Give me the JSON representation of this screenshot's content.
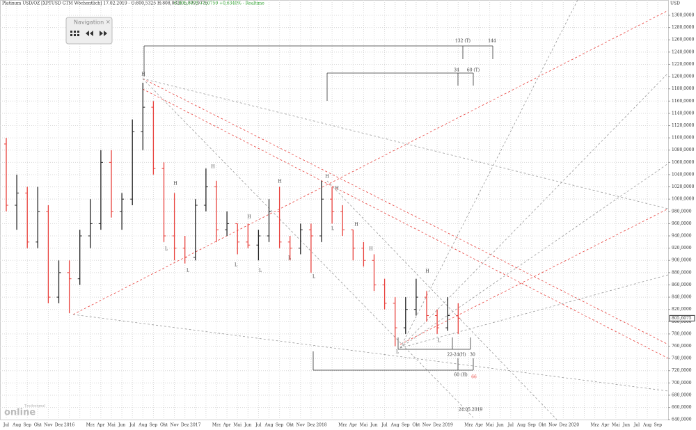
{
  "chart_data": {
    "type": "ohlc",
    "title": "Platinum USD/OZ [XPTUSD GTM Wöchentlich] 17.02.2019 - O:800,5325 H:808,0825 L:779,9775",
    "title_change": "C:805,6075 +5,0750 +0,6340% - Realtime",
    "y_unit": "USD",
    "categories": [
      "Jul",
      "Aug",
      "Sep",
      "Okt",
      "Nov",
      "Dez",
      "2016",
      null,
      "Mrz",
      "Apr",
      "Mai",
      "Jun",
      "Jul",
      "Aug",
      "Sep",
      "Okt",
      "Nov",
      "Dez",
      "2017",
      null,
      "Mrz",
      "Apr",
      "Mai",
      "Jun",
      "Jul",
      "Aug",
      "Sep",
      "Okt",
      "Nov",
      "Dez",
      "2018",
      null,
      "Mrz",
      "Apr",
      "Mai",
      "Jun",
      "Jul",
      "Aug",
      "Sep",
      "Okt",
      "Nov",
      "Dez",
      "2019",
      null,
      "Mrz",
      "Apr",
      "Mai",
      "Jun",
      "Jul",
      "Aug",
      "Sep",
      "Okt",
      "Nov",
      "Dez",
      "2020",
      null,
      "Mrz",
      "Apr",
      "Mai",
      "Jun",
      "Jul",
      "Aug",
      "Sep"
    ],
    "open": [
      1090,
      990,
      1010,
      930,
      980,
      840,
      880,
      870,
      940,
      960,
      1060,
      980,
      1000,
      1110,
      1150,
      1050,
      940,
      920,
      905,
      990,
      1020,
      950,
      960,
      930,
      925,
      940,
      980,
      930,
      920,
      950,
      940,
      1000,
      980,
      950,
      920,
      900,
      860,
      830,
      790,
      820,
      840,
      810,
      790,
      810,
      null,
      null,
      null,
      null,
      null,
      null,
      null,
      null,
      null,
      null,
      null,
      null,
      null,
      null,
      null,
      null,
      null,
      null,
      null
    ],
    "high": [
      1100,
      1040,
      1020,
      1020,
      990,
      900,
      900,
      950,
      1000,
      1080,
      1080,
      1010,
      1130,
      1190,
      1160,
      1060,
      1010,
      940,
      1000,
      1050,
      1030,
      980,
      960,
      960,
      950,
      1000,
      1020,
      940,
      960,
      960,
      1030,
      1020,
      990,
      950,
      930,
      910,
      870,
      840,
      840,
      870,
      850,
      820,
      840,
      830,
      null,
      null,
      null,
      null,
      null,
      null,
      null,
      null,
      null,
      null,
      null,
      null,
      null,
      null,
      null,
      null,
      null,
      null,
      null
    ],
    "low": [
      980,
      950,
      920,
      920,
      830,
      830,
      814,
      860,
      920,
      950,
      970,
      950,
      990,
      1080,
      1040,
      930,
      900,
      895,
      900,
      980,
      930,
      940,
      910,
      920,
      900,
      930,
      920,
      900,
      910,
      880,
      930,
      960,
      940,
      900,
      890,
      850,
      820,
      760,
      780,
      810,
      800,
      780,
      785,
      780,
      null,
      null,
      null,
      null,
      null,
      null,
      null,
      null,
      null,
      null,
      null,
      null,
      null,
      null,
      null,
      null,
      null,
      null,
      null
    ],
    "close": [
      990,
      1010,
      930,
      980,
      840,
      880,
      870,
      940,
      960,
      1060,
      980,
      1000,
      1110,
      1150,
      1050,
      940,
      920,
      905,
      990,
      1020,
      950,
      960,
      930,
      925,
      940,
      980,
      930,
      920,
      950,
      940,
      1000,
      980,
      950,
      920,
      900,
      860,
      830,
      790,
      820,
      840,
      810,
      790,
      810,
      805.6,
      null,
      null,
      null,
      null,
      null,
      null,
      null,
      null,
      null,
      null,
      null,
      null,
      null,
      null,
      null,
      null,
      null,
      null,
      null
    ],
    "up_color": "#222222",
    "down_color": "#e8413c",
    "ylim": [
      630,
      1325
    ],
    "yticks": [
      {
        "value": 640,
        "label": "640,0000"
      },
      {
        "value": 660,
        "label": "660,0000"
      },
      {
        "value": 680,
        "label": "680,0000"
      },
      {
        "value": 700,
        "label": "700,0000"
      },
      {
        "value": 720,
        "label": "720,0000"
      },
      {
        "value": 740,
        "label": "740,0000"
      },
      {
        "value": 760,
        "label": "760,0000"
      },
      {
        "value": 780,
        "label": "780,0000"
      },
      {
        "value": 800,
        "label": "800,0000"
      },
      {
        "value": 820,
        "label": "820,0000"
      },
      {
        "value": 840,
        "label": "840,0000"
      },
      {
        "value": 860,
        "label": "860,0000"
      },
      {
        "value": 880,
        "label": "880,0000"
      },
      {
        "value": 900,
        "label": "900,0000"
      },
      {
        "value": 920,
        "label": "920,0000"
      },
      {
        "value": 940,
        "label": "940,0000"
      },
      {
        "value": 960,
        "label": "960,0000"
      },
      {
        "value": 980,
        "label": "980,0000"
      },
      {
        "value": 1000,
        "label": "1000,0000"
      },
      {
        "value": 1020,
        "label": "1020,0000"
      },
      {
        "value": 1040,
        "label": "1040,0000"
      },
      {
        "value": 1060,
        "label": "1060,0000"
      },
      {
        "value": 1080,
        "label": "1080,0000"
      },
      {
        "value": 1100,
        "label": "1100,0000"
      },
      {
        "value": 1120,
        "label": "1120,0000"
      },
      {
        "value": 1140,
        "label": "1140,0000"
      },
      {
        "value": 1160,
        "label": "1160,0000"
      },
      {
        "value": 1180,
        "label": "1180,0000"
      },
      {
        "value": 1200,
        "label": "1200,0000"
      },
      {
        "value": 1220,
        "label": "1220,0000"
      },
      {
        "value": 1240,
        "label": "1240,0000"
      },
      {
        "value": 1260,
        "label": "1260,0000"
      },
      {
        "value": 1280,
        "label": "1280,0000"
      },
      {
        "value": 1300,
        "label": "1300,0000"
      }
    ],
    "grid": true,
    "last_price_label": "805,6075",
    "annotations": [
      "132 (T)",
      "144",
      "34",
      "60 (T)",
      "22-24(H)",
      "30",
      "60 (H)",
      "66",
      "24.05.2019"
    ],
    "pivots": [
      "H",
      "H",
      "H",
      "H",
      "H",
      "H",
      "H",
      "H",
      "H",
      "H",
      "L",
      "L",
      "L",
      "L",
      "L",
      "L",
      "L",
      "L",
      "L"
    ]
  },
  "navigation": {
    "title": "Navigation"
  },
  "logo": {
    "small": "Tradesignal",
    "big": "online"
  }
}
